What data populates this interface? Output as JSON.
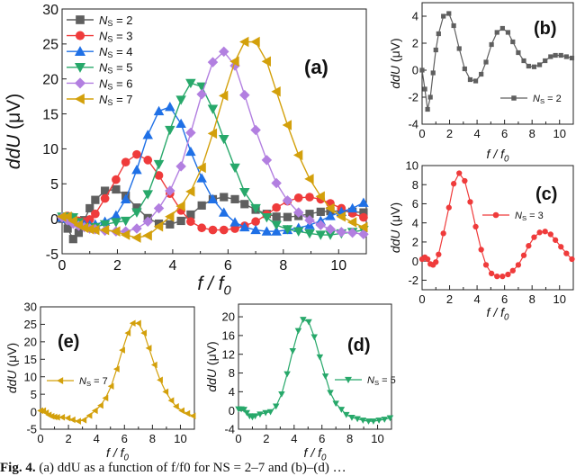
{
  "colors": {
    "ns2": "#5f5f5f",
    "ns3": "#ef3b3b",
    "ns4": "#1f70e6",
    "ns5": "#27a86a",
    "ns6": "#b27fe0",
    "ns7": "#d3a00b"
  },
  "caption": {
    "fig": "Fig. 4.",
    "text": " (a) ddU as a function of f/f0 for NS = 2–7 and (b)–(d) …"
  },
  "chart_data": {
    "type": "line",
    "x": [
      0,
      0.2,
      0.4,
      0.6,
      0.8,
      1.0,
      1.2,
      1.55,
      1.95,
      2.3,
      2.7,
      3.1,
      3.5,
      3.9,
      4.3,
      4.65,
      5.05,
      5.45,
      5.85,
      6.25,
      6.6,
      7.0,
      7.4,
      7.75,
      8.15,
      8.55,
      8.95,
      9.35,
      9.7,
      10.1,
      10.5,
      10.9
    ],
    "series": [
      {
        "id": "ns2",
        "var": "N",
        "sub": "S",
        "eq": " = 2",
        "marker": "square",
        "color": "#5f5f5f",
        "values": [
          0,
          -1.4,
          -2.9,
          -2.0,
          -0.2,
          1.5,
          2.7,
          4.0,
          4.2,
          3.3,
          1.6,
          0.1,
          -0.7,
          -0.8,
          -0.3,
          0.6,
          1.9,
          2.8,
          3.1,
          2.8,
          2.1,
          1.3,
          0.7,
          0.3,
          0.25,
          0.4,
          0.7,
          1.0,
          1.1,
          1.1,
          1.0,
          0.9
        ]
      },
      {
        "id": "ns3",
        "var": "N",
        "sub": "S",
        "eq": " = 3",
        "marker": "circle",
        "color": "#ef3b3b",
        "values": [
          0.2,
          0.4,
          0.2,
          -0.3,
          -0.4,
          -0.1,
          0.7,
          2.9,
          5.6,
          8.1,
          9.2,
          8.4,
          6.2,
          3.6,
          1.2,
          -0.4,
          -1.3,
          -1.6,
          -1.6,
          -1.4,
          -1.0,
          -0.4,
          0.6,
          1.6,
          2.5,
          3.0,
          3.1,
          2.8,
          2.2,
          1.5,
          0.8,
          0.2
        ]
      },
      {
        "id": "ns4",
        "var": "N",
        "sub": "S",
        "eq": " = 4",
        "marker": "triangle-up",
        "color": "#1f70e6",
        "values": [
          0.2,
          0,
          -0.3,
          -0.6,
          -0.8,
          -0.9,
          -0.8,
          -0.4,
          0.5,
          2.8,
          7.0,
          12.0,
          15.4,
          16.0,
          13.6,
          9.6,
          5.8,
          2.8,
          0.9,
          -0.5,
          -1.2,
          -1.6,
          -1.8,
          -1.8,
          -1.6,
          -1.3,
          -0.9,
          -0.3,
          0.4,
          1.0,
          1.5,
          2.3
        ]
      },
      {
        "id": "ns5",
        "var": "N",
        "sub": "S",
        "eq": " = 5",
        "marker": "triangle-down",
        "color": "#27a86a",
        "values": [
          0.3,
          0.3,
          0.2,
          -0.5,
          -1.2,
          -1.4,
          -1.2,
          -0.8,
          -0.5,
          -0.3,
          0.9,
          3.5,
          7.8,
          12.7,
          17.0,
          19.4,
          18.9,
          15.7,
          11.4,
          7.3,
          3.8,
          1.5,
          0.2,
          -0.9,
          -1.5,
          -1.8,
          -2.1,
          -2.3,
          -2.3,
          -2.1,
          -1.9,
          -1.6
        ]
      },
      {
        "id": "ns6",
        "var": "N",
        "sub": "S",
        "eq": " = 6",
        "marker": "diamond",
        "color": "#b27fe0",
        "values": [
          0.2,
          -0.2,
          -0.7,
          -1.0,
          -1.2,
          -1.4,
          -1.5,
          -1.7,
          -1.8,
          -1.8,
          -1.4,
          -0.4,
          1.5,
          4.0,
          7.5,
          12.3,
          17.8,
          22.4,
          23.9,
          21.9,
          17.7,
          12.7,
          8.4,
          5.1,
          2.6,
          0.9,
          -0.2,
          -0.9,
          -1.5,
          -1.9,
          -2.0,
          -2.2
        ]
      },
      {
        "id": "ns7",
        "var": "N",
        "sub": "S",
        "eq": " = 7",
        "marker": "triangle-left",
        "color": "#d3a00b",
        "values": [
          0.3,
          0.3,
          -0.3,
          -0.9,
          -1.3,
          -1.5,
          -1.6,
          -1.6,
          -1.8,
          -2.3,
          -2.7,
          -2.4,
          -1.1,
          0.3,
          1.8,
          3.9,
          7.3,
          12.2,
          17.6,
          22.5,
          25.3,
          25.3,
          22.5,
          18.2,
          13.4,
          9.1,
          5.7,
          3.2,
          1.5,
          0.3,
          -0.5,
          -1.2
        ]
      }
    ],
    "panels": [
      {
        "id": "a",
        "label": "(a)",
        "series": [
          0,
          1,
          2,
          3,
          4,
          5
        ],
        "xlim": [
          0,
          11
        ],
        "ylim": [
          -5,
          30
        ],
        "xticks": [
          0,
          2,
          4,
          6,
          8,
          10
        ],
        "yticks": [
          -5,
          0,
          5,
          10,
          15,
          20,
          25,
          30
        ],
        "xlabel": {
          "main": "f / f",
          "sub": "0"
        },
        "ylabel": {
          "italic": "ddU",
          "rest": " (μV)"
        },
        "legend": "top-left"
      },
      {
        "id": "b",
        "label": "(b)",
        "series": [
          0
        ],
        "xlim": [
          0,
          11
        ],
        "ylim": [
          -4,
          5
        ],
        "xticks": [
          0,
          2,
          4,
          6,
          8,
          10
        ],
        "yticks": [
          -4,
          -2,
          0,
          2,
          4
        ],
        "xlabel": {
          "main": "f / f",
          "sub": "0"
        },
        "ylabel": {
          "italic": "ddU",
          "rest": " (μV)"
        },
        "legend": "bottom-right"
      },
      {
        "id": "c",
        "label": "(c)",
        "series": [
          1
        ],
        "xlim": [
          0,
          11
        ],
        "ylim": [
          -3,
          10
        ],
        "xticks": [
          0,
          2,
          4,
          6,
          8,
          10
        ],
        "yticks": [
          -2,
          0,
          2,
          4,
          6,
          8,
          10
        ],
        "xlabel": {
          "main": "f / f",
          "sub": "0"
        },
        "ylabel": {
          "italic": "ddU",
          "rest": " (μV)"
        },
        "legend": "center-right"
      },
      {
        "id": "e",
        "label": "(e)",
        "series": [
          5
        ],
        "xlim": [
          0,
          11
        ],
        "ylim": [
          -5,
          30
        ],
        "xticks": [
          0,
          2,
          4,
          6,
          8,
          10
        ],
        "yticks": [
          -5,
          0,
          5,
          10,
          15,
          20,
          25,
          30
        ],
        "xlabel": {
          "main": "f / f",
          "sub": "0"
        },
        "ylabel": {
          "italic": "ddU",
          "rest": " (μV)"
        },
        "legend": "center-left"
      },
      {
        "id": "d",
        "label": "(d)",
        "series": [
          3
        ],
        "xlim": [
          0,
          11
        ],
        "ylim": [
          -4,
          22.7
        ],
        "xticks": [
          0,
          2,
          4,
          6,
          8,
          10
        ],
        "yticks": [
          -4,
          0,
          4,
          8,
          12,
          16,
          20
        ],
        "xlabel": {
          "main": "f / f",
          "sub": "0"
        },
        "ylabel": {
          "italic": "ddU",
          "rest": " (μV)"
        },
        "legend": "center-right"
      }
    ]
  }
}
